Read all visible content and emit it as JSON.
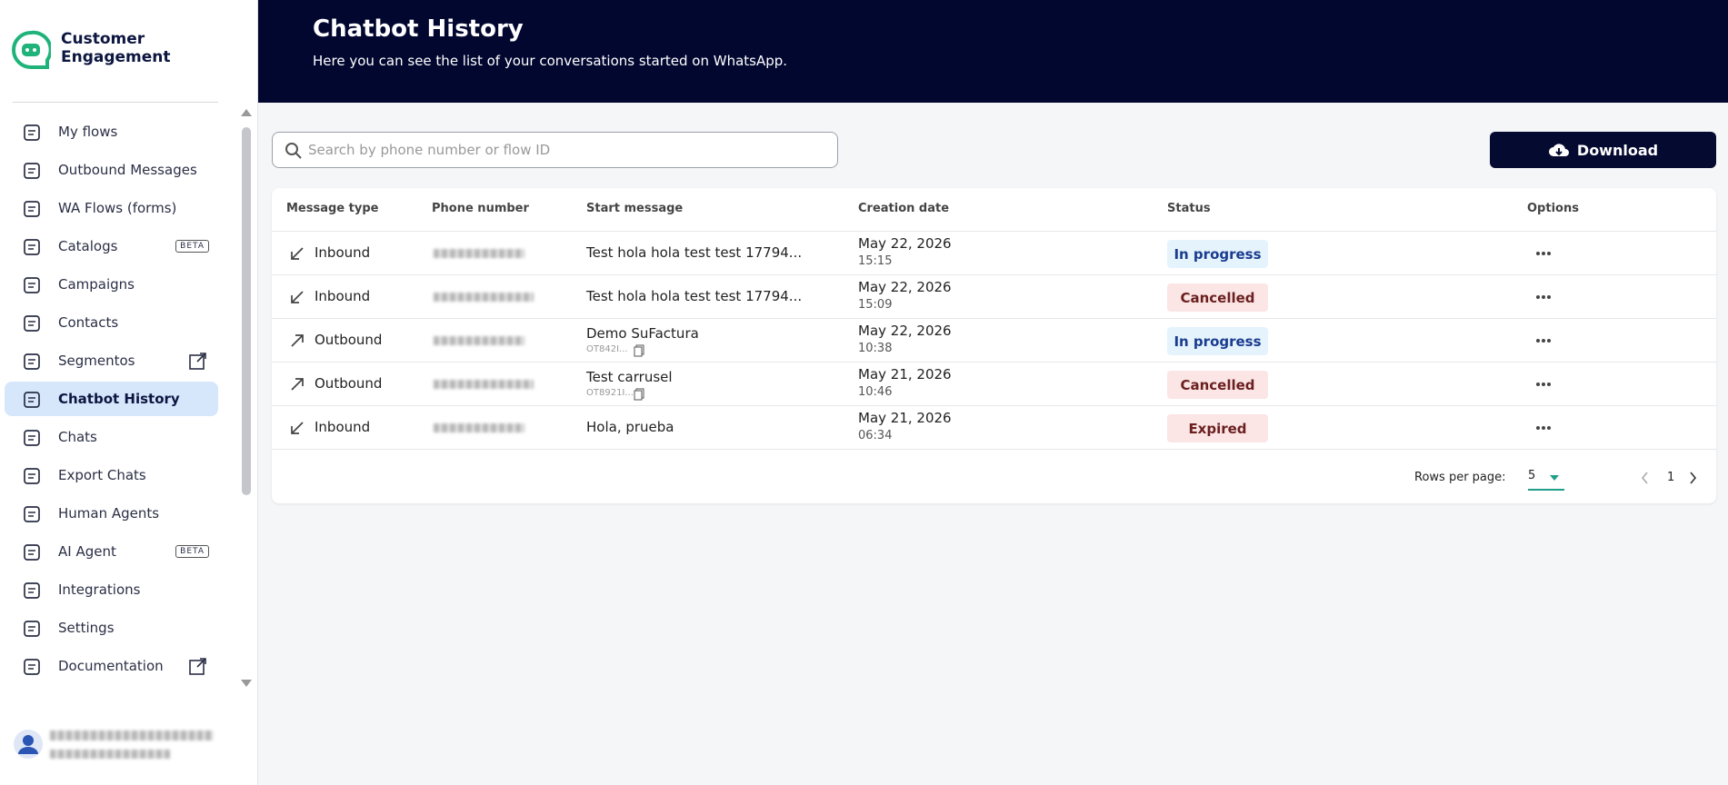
{
  "sidebar": {
    "brand": "Customer Engagement",
    "nav": [
      {
        "label": "My flows"
      },
      {
        "label": "Outbound Messages"
      },
      {
        "label": "WA Flows (forms)"
      },
      {
        "label": "Catalogs",
        "badge": "BETA"
      },
      {
        "label": "Campaigns"
      },
      {
        "label": "Contacts"
      },
      {
        "label": "Segmentos",
        "external": true
      },
      {
        "label": "Chatbot History",
        "active": true
      },
      {
        "label": "Chats"
      },
      {
        "label": "Export Chats"
      },
      {
        "label": "Human Agents"
      },
      {
        "label": "AI Agent",
        "badge": "BETA"
      },
      {
        "label": "Integrations"
      },
      {
        "label": "Settings"
      },
      {
        "label": "Documentation",
        "external": true
      }
    ]
  },
  "header": {
    "title": "Chatbot History",
    "subtitle": "Here you can see the list of your conversations started on WhatsApp."
  },
  "toolbar": {
    "search_placeholder": "Search by phone number or flow ID",
    "download": "Download"
  },
  "table": {
    "columns": [
      "Message type",
      "Phone number",
      "Start message",
      "Creation date",
      "Status",
      "Options"
    ],
    "rows": [
      {
        "type": "Inbound",
        "start_message": "Test hola hola test test 17794...",
        "date": "May 22, 2026",
        "time": "15:15",
        "status": "In progress"
      },
      {
        "type": "Inbound",
        "start_message": "Test hola hola test test 17794...",
        "date": "May 22, 2026",
        "time": "15:09",
        "status": "Cancelled"
      },
      {
        "type": "Outbound",
        "start_message": "Demo SuFactura",
        "flow_id": "OT842I...",
        "date": "May 22, 2026",
        "time": "10:38",
        "status": "In progress"
      },
      {
        "type": "Outbound",
        "start_message": "Test carrusel",
        "flow_id": "OT8921I...",
        "date": "May 21, 2026",
        "time": "10:46",
        "status": "Cancelled"
      },
      {
        "type": "Inbound",
        "start_message": "Hola, prueba",
        "date": "May 21, 2026",
        "time": "06:34",
        "status": "Expired"
      }
    ],
    "footer": {
      "rows_per_page_label": "Rows per page:",
      "rows_per_page": 5,
      "page": 1
    }
  }
}
